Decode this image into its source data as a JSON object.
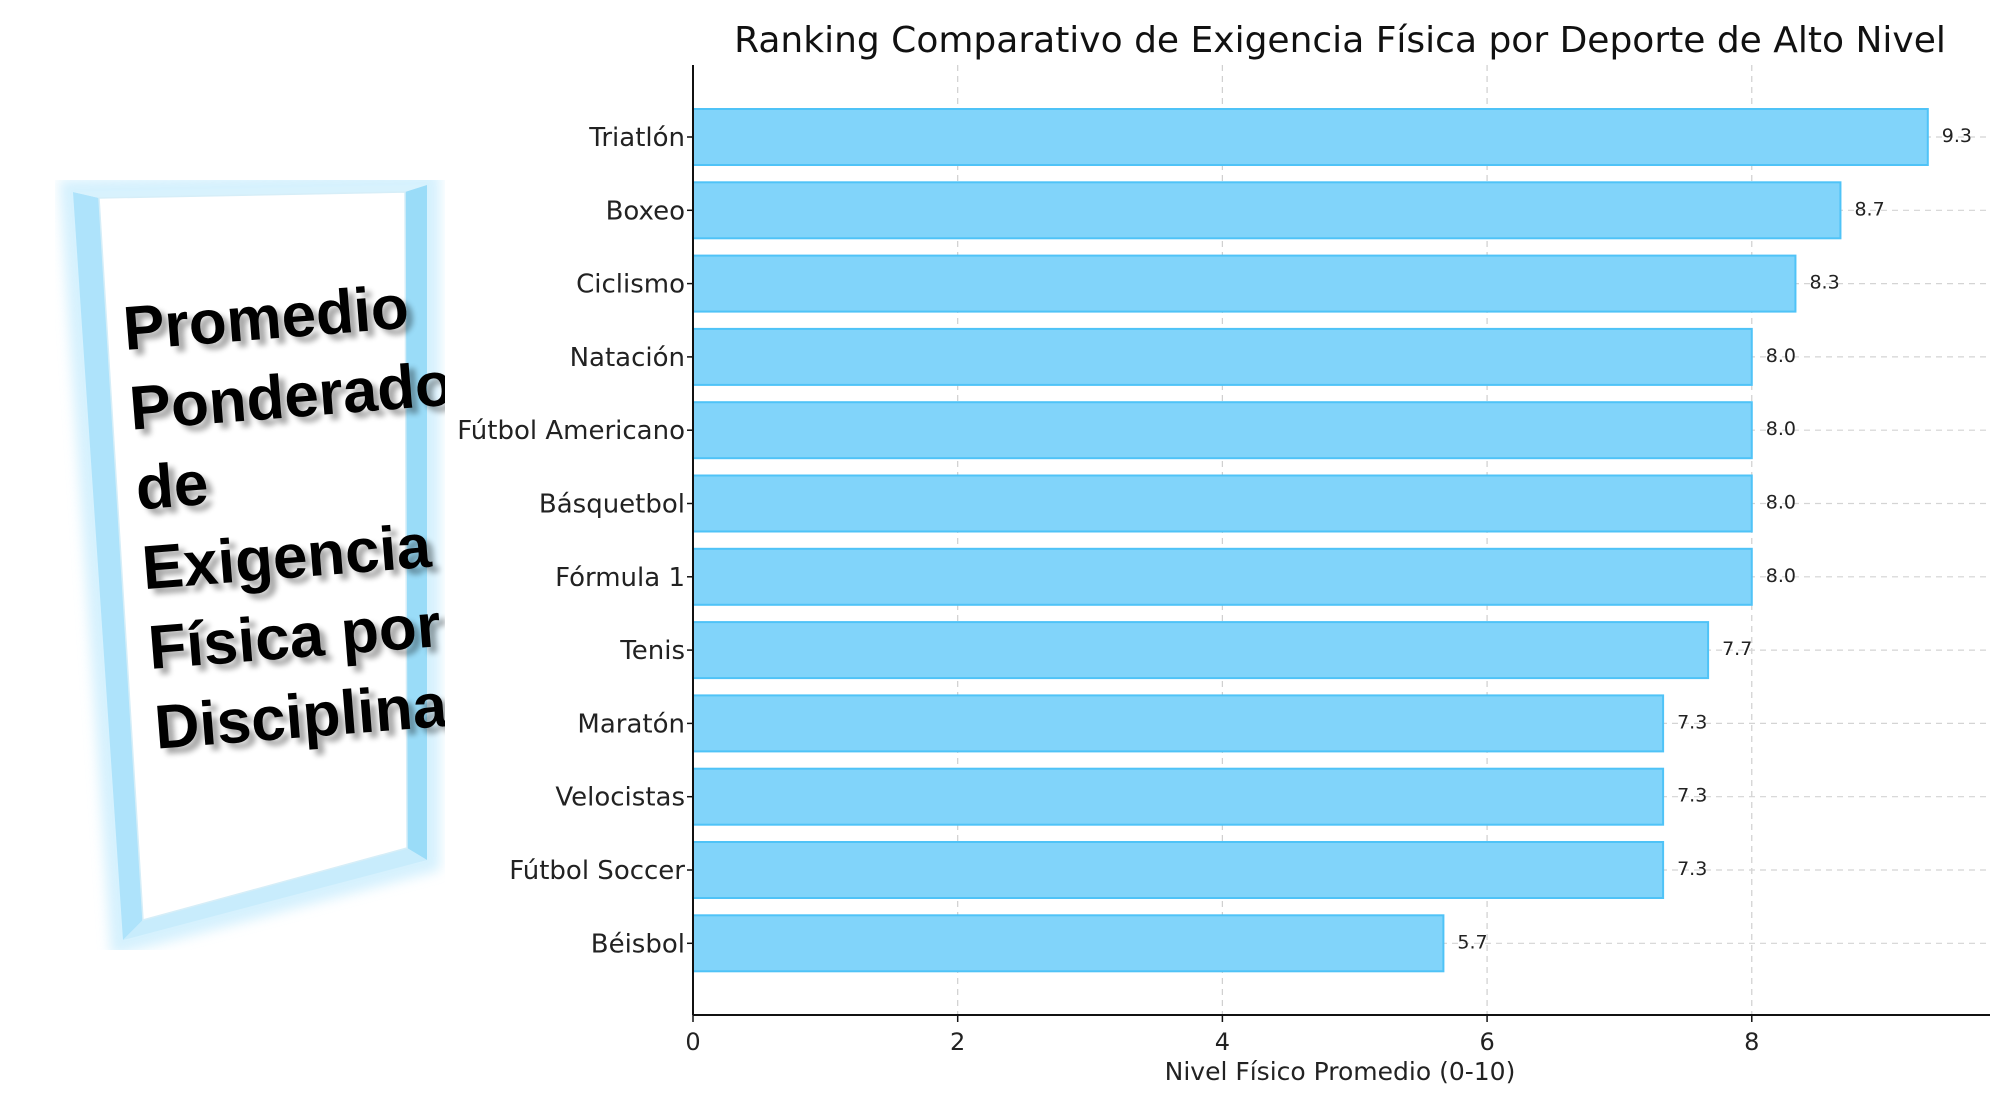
{
  "side_panel": {
    "lines": [
      "Promedio",
      "Ponderado",
      "de",
      "Exigencia",
      "Física por",
      "Disciplina"
    ],
    "frame_color": "#7fd3f7"
  },
  "chart_data": {
    "type": "bar",
    "orientation": "horizontal",
    "title": "Ranking Comparativo de Exigencia Física por Deporte de Alto Nivel",
    "xlabel": "Nivel Físico Promedio (0-10)",
    "ylabel": "",
    "xlim": [
      0,
      9.8
    ],
    "xticks": [
      0,
      2,
      4,
      6,
      8
    ],
    "grid": true,
    "bar_color": "#81d4fa",
    "bar_edge_color": "#4fc3f7",
    "categories": [
      "Triatlón",
      "Boxeo",
      "Ciclismo",
      "Natación",
      "Fútbol Americano",
      "Básquetbol",
      "Fórmula 1",
      "Tenis",
      "Maratón",
      "Velocistas",
      "Fútbol Soccer",
      "Béisbol"
    ],
    "values": [
      9.33,
      8.67,
      8.33,
      8.0,
      8.0,
      8.0,
      8.0,
      7.67,
      7.33,
      7.33,
      7.33,
      5.67
    ],
    "value_labels": [
      "9.3",
      "8.7",
      "8.3",
      "8.0",
      "8.0",
      "8.0",
      "8.0",
      "7.7",
      "7.3",
      "7.3",
      "7.3",
      "5.7"
    ]
  }
}
